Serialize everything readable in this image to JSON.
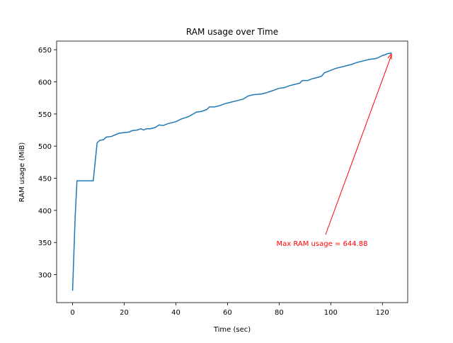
{
  "chart_data": {
    "type": "line",
    "title": "RAM usage over Time",
    "x_label": "Time (sec)",
    "y_label": "RAM usage (MiB)",
    "x": [
      0,
      1,
      1.7,
      8,
      9.5,
      10.5,
      12,
      13,
      15,
      18,
      20,
      22,
      23,
      25,
      26.5,
      27.5,
      28.5,
      30,
      32,
      33.5,
      35,
      37,
      40,
      42,
      45,
      48,
      50,
      52,
      53,
      55,
      57,
      59,
      61,
      63,
      66,
      68,
      70,
      73,
      75,
      78,
      80,
      82,
      84,
      86,
      88,
      89,
      91,
      93,
      95,
      96.5,
      97.5,
      100,
      102,
      105,
      108,
      110,
      113,
      115,
      117,
      118,
      120,
      121,
      122,
      123.6
    ],
    "series": [
      {
        "name": "RAM usage",
        "color": "#1f77b4",
        "values": [
          275,
          390,
          446,
          446,
          505,
          509,
          510,
          514,
          515,
          520,
          521,
          522,
          524,
          525,
          527,
          525,
          527,
          527,
          529,
          533,
          532,
          535,
          538,
          542,
          546,
          553,
          554,
          557,
          561,
          561,
          563,
          566,
          568,
          570,
          573,
          578,
          580,
          581,
          583,
          587,
          590,
          591,
          594,
          596,
          598,
          602,
          602,
          605,
          607,
          609,
          614,
          618,
          621,
          624,
          627,
          630,
          633,
          635,
          636,
          637,
          641,
          642,
          644,
          644.88
        ]
      }
    ],
    "annotation": {
      "text": "Max RAM usage = 644.88",
      "color": "red"
    },
    "xlim": [
      -6.18,
      129.8
    ],
    "ylim": [
      256.5,
      663.4
    ],
    "xticks": [
      0,
      20,
      40,
      60,
      80,
      100,
      120
    ],
    "yticks": [
      300,
      350,
      400,
      450,
      500,
      550,
      600,
      650
    ],
    "grid": false
  }
}
